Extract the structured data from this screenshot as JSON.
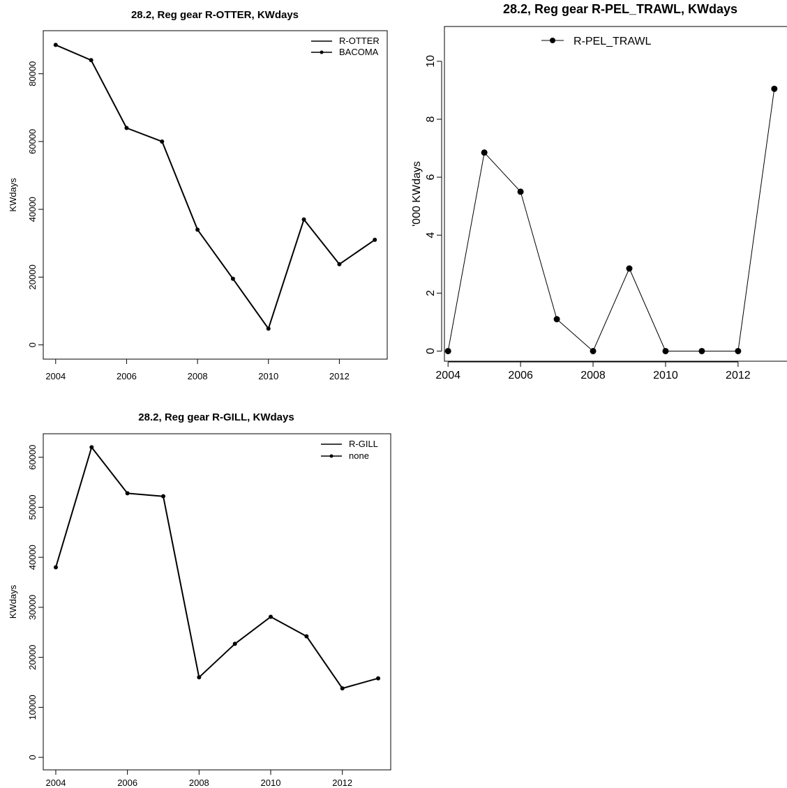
{
  "chart_data": [
    {
      "type": "line",
      "title": "28.2, Reg gear R-OTTER, KWdays",
      "xlabel": "",
      "ylabel": "KWdays",
      "x": [
        2004,
        2005,
        2006,
        2007,
        2008,
        2009,
        2010,
        2011,
        2012,
        2013
      ],
      "series": [
        {
          "name": "R-OTTER",
          "values": [
            88500,
            84000,
            64000,
            60000,
            34000,
            19500,
            4800,
            37000,
            23800,
            31000
          ]
        },
        {
          "name": "BACOMA",
          "values": [
            88500,
            84000,
            64000,
            60000,
            34000,
            19500,
            4800,
            37000,
            23800,
            31000
          ]
        }
      ],
      "xticks": [
        "2004",
        "2006",
        "2008",
        "2010",
        "2012"
      ],
      "yticks": [
        "0",
        "20000",
        "40000",
        "60000",
        "80000"
      ],
      "legend": [
        "R-OTTER",
        "BACOMA"
      ],
      "legend_position": "top-right",
      "grid": false
    },
    {
      "type": "line",
      "title": "28.2, Reg gear R-PEL_TRAWL, KWdays",
      "xlabel": "",
      "ylabel": "'000 KWdays",
      "x": [
        2004,
        2005,
        2006,
        2007,
        2008,
        2009,
        2010,
        2011,
        2012,
        2013
      ],
      "series": [
        {
          "name": "R-PEL_TRAWL",
          "values": [
            0,
            6.85,
            5.5,
            1.1,
            0,
            2.85,
            0,
            0,
            0,
            9.05
          ]
        }
      ],
      "xticks": [
        "2004",
        "2006",
        "2008",
        "2010",
        "2012"
      ],
      "yticks": [
        "0",
        "2",
        "4",
        "6",
        "8",
        "10"
      ],
      "legend": [
        "R-PEL_TRAWL"
      ],
      "legend_position": "top-left",
      "grid": false
    },
    {
      "type": "line",
      "title": "28.2, Reg gear R-GILL, KWdays",
      "xlabel": "",
      "ylabel": "KWdays",
      "x": [
        2004,
        2005,
        2006,
        2007,
        2008,
        2009,
        2010,
        2011,
        2012,
        2013
      ],
      "series": [
        {
          "name": "R-GILL",
          "values": [
            38000,
            62000,
            52800,
            52200,
            16000,
            22700,
            28100,
            24200,
            13800,
            15800
          ]
        },
        {
          "name": "none",
          "values": [
            38000,
            62000,
            52800,
            52200,
            16000,
            22700,
            28100,
            24200,
            13800,
            15800
          ]
        }
      ],
      "xticks": [
        "2004",
        "2006",
        "2008",
        "2010",
        "2012"
      ],
      "yticks": [
        "0",
        "10000",
        "20000",
        "30000",
        "40000",
        "50000",
        "60000"
      ],
      "legend": [
        "R-GILL",
        "none"
      ],
      "legend_position": "top-right",
      "grid": false
    }
  ]
}
